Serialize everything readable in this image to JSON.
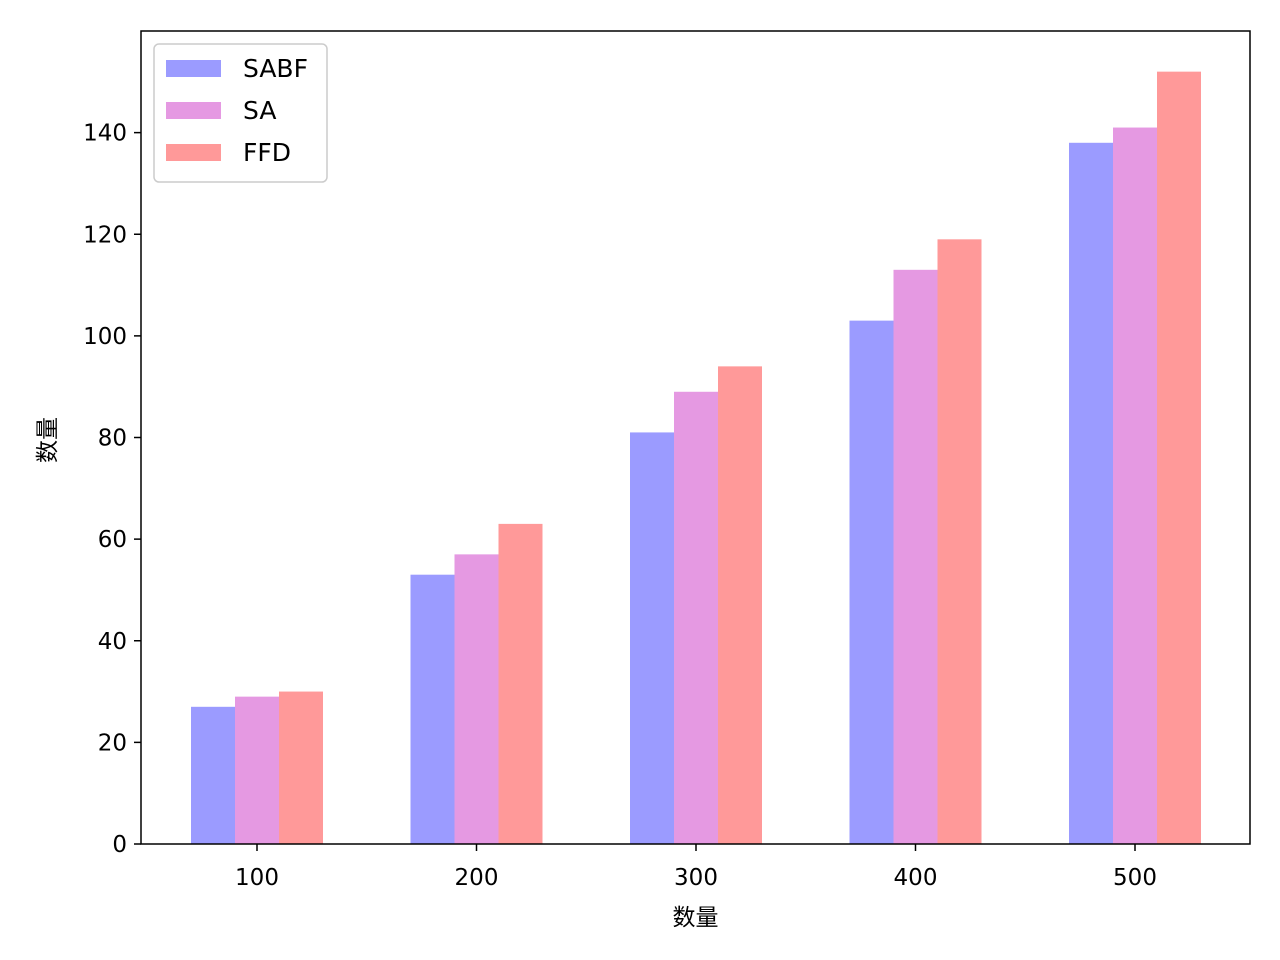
{
  "chart_data": {
    "type": "bar",
    "title": "",
    "xlabel": "数量",
    "ylabel": "数量",
    "categories": [
      "100",
      "200",
      "300",
      "400",
      "500"
    ],
    "ylim": [
      0,
      160
    ],
    "yticks": [
      0,
      20,
      40,
      60,
      80,
      100,
      120,
      140
    ],
    "grid": false,
    "legend_position": "top-left",
    "series": [
      {
        "name": "SABF",
        "color": "#9b9bff",
        "values": [
          27,
          53,
          81,
          103,
          138
        ]
      },
      {
        "name": "SA",
        "color": "#e599e2",
        "values": [
          29,
          57,
          89,
          113,
          141
        ]
      },
      {
        "name": "FFD",
        "color": "#ff9999",
        "values": [
          30,
          63,
          94,
          119,
          152
        ]
      }
    ]
  }
}
